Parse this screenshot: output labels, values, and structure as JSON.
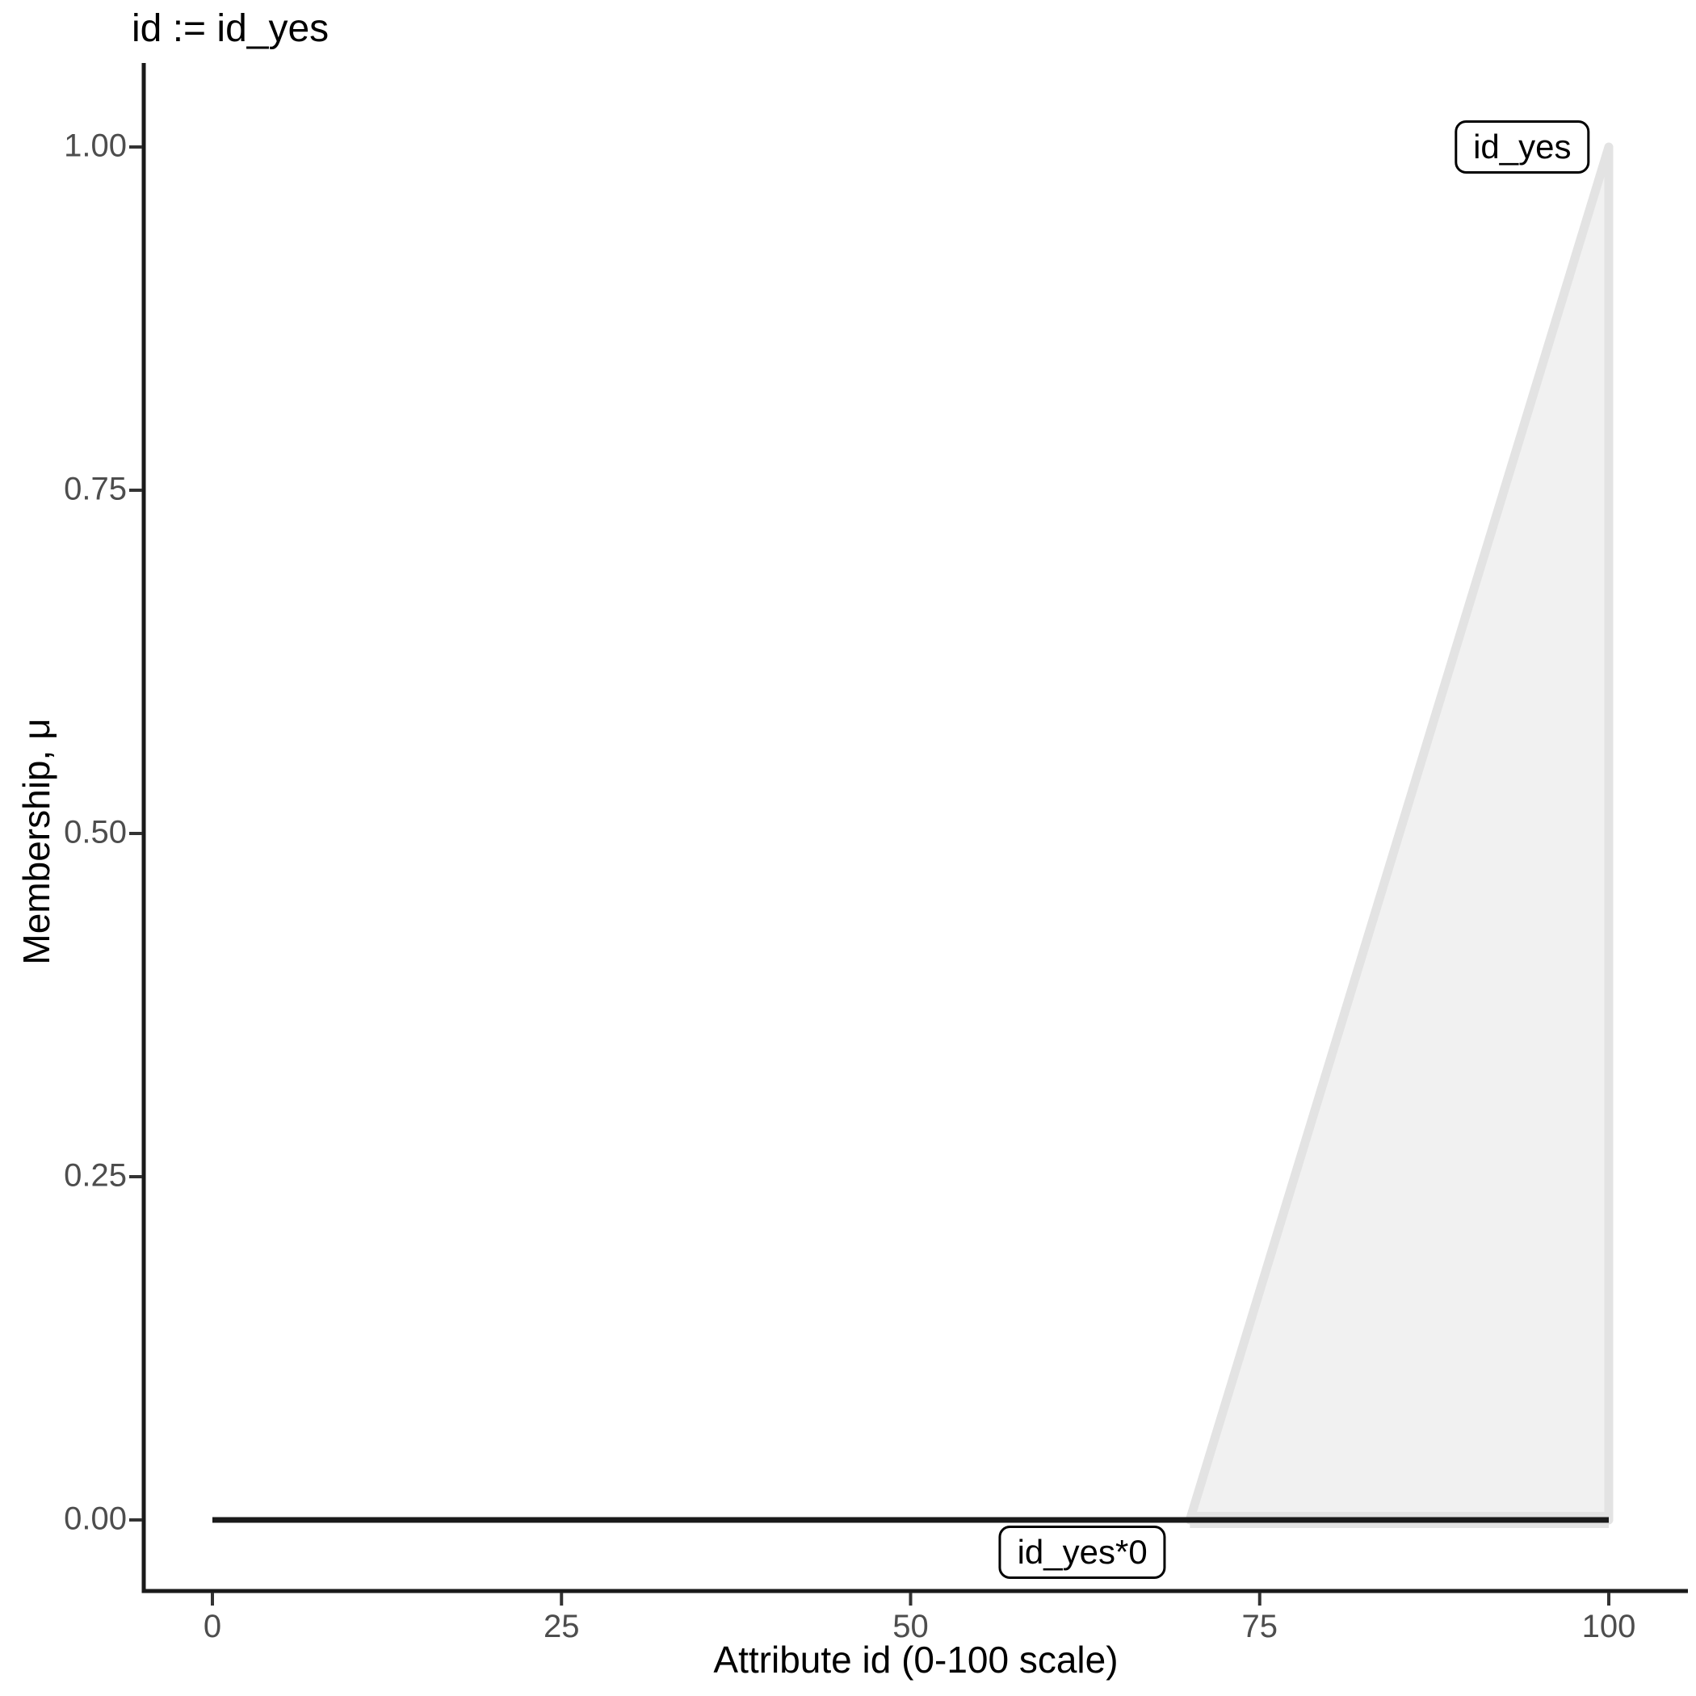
{
  "title": "id := id_yes",
  "chart_data": {
    "type": "area",
    "title": "id := id_yes",
    "xlabel": "Attribute id (0-100 scale)",
    "ylabel": "Membership, μ",
    "xlim": [
      0,
      100
    ],
    "ylim": [
      0,
      1
    ],
    "grid": false,
    "legend_position": "none",
    "x_ticks": [
      0,
      25,
      50,
      75,
      100
    ],
    "x_tick_labels": [
      "0",
      "25",
      "50",
      "75",
      "100"
    ],
    "y_ticks": [
      0,
      0.25,
      0.5,
      0.75,
      1
    ],
    "y_tick_labels": [
      "0.00",
      "0.25",
      "0.50",
      "0.75",
      "1.00"
    ],
    "series": [
      {
        "name": "id_yes",
        "kind": "area-polygon",
        "points": [
          [
            70,
            0
          ],
          [
            100,
            1
          ],
          [
            100,
            0
          ]
        ],
        "fill": "#f1f1f1",
        "stroke": "#e3e3e3",
        "stroke_width": 11,
        "base_edge": {
          "from": [
            70,
            0
          ],
          "to": [
            100,
            0
          ],
          "width": 20
        },
        "label": "id_yes",
        "label_pos": [
          93.8,
          1.0
        ]
      },
      {
        "name": "id_yes*0",
        "kind": "line",
        "points": [
          [
            0,
            0
          ],
          [
            100,
            0
          ]
        ],
        "stroke": "#1a1a1a",
        "stroke_width": 7,
        "label": "id_yes*0",
        "label_pos": [
          62.3,
          -0.0235
        ]
      }
    ],
    "colors": {
      "axis_line": "#1a1a1a",
      "tick_mark": "#333333",
      "tick_label": "#4d4d4d",
      "text": "#000000",
      "background": "#ffffff"
    }
  }
}
